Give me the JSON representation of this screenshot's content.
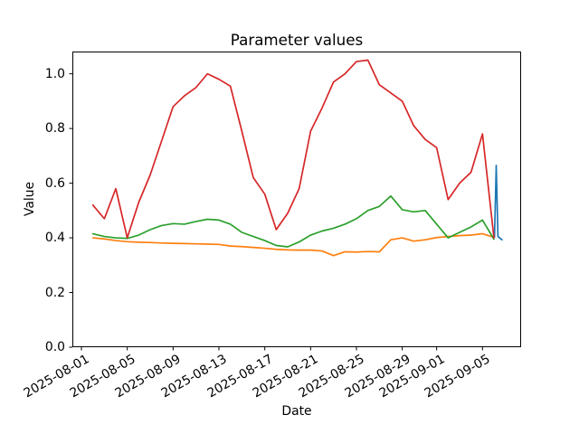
{
  "chart_data": {
    "type": "line",
    "title": "Parameter values",
    "xlabel": "Date",
    "ylabel": "Value",
    "grid": false,
    "legend": "none",
    "x_axis": {
      "tick_labels": [
        "2025-08-01",
        "2025-08-05",
        "2025-08-09",
        "2025-08-13",
        "2025-08-17",
        "2025-08-21",
        "2025-08-25",
        "2025-08-29",
        "2025-09-01",
        "2025-09-05"
      ],
      "tick_days": [
        1,
        5,
        9,
        13,
        17,
        21,
        25,
        29,
        32,
        36
      ],
      "lim_days": [
        0.21,
        39.37
      ],
      "day_unit": "day 1 = 2025-08-01"
    },
    "y_axis": {
      "tick_labels": [
        "0.0",
        "0.2",
        "0.4",
        "0.6",
        "0.8",
        "1.0"
      ],
      "tick_values": [
        0.0,
        0.2,
        0.4,
        0.6,
        0.8,
        1.0
      ],
      "lim": [
        0.0,
        1.0815
      ]
    },
    "dates": [
      "2025-08-02",
      "2025-08-03",
      "2025-08-04",
      "2025-08-05",
      "2025-08-06",
      "2025-08-07",
      "2025-08-08",
      "2025-08-09",
      "2025-08-10",
      "2025-08-11",
      "2025-08-12",
      "2025-08-13",
      "2025-08-14",
      "2025-08-15",
      "2025-08-16",
      "2025-08-17",
      "2025-08-18",
      "2025-08-19",
      "2025-08-20",
      "2025-08-21",
      "2025-08-22",
      "2025-08-23",
      "2025-08-24",
      "2025-08-25",
      "2025-08-26",
      "2025-08-27",
      "2025-08-28",
      "2025-08-29",
      "2025-08-30",
      "2025-08-31",
      "2025-09-01",
      "2025-09-02",
      "2025-09-03",
      "2025-09-04",
      "2025-09-05",
      "2025-09-06"
    ],
    "series": [
      {
        "name": "series-blue",
        "color": "#1f77b4",
        "x_days": [
          37.05,
          37.2,
          37.35,
          37.7
        ],
        "values": [
          0.402,
          0.665,
          0.405,
          0.393
        ]
      },
      {
        "name": "series-orange",
        "color": "#ff7f0e",
        "values": [
          0.4,
          0.396,
          0.39,
          0.386,
          0.384,
          0.383,
          0.381,
          0.38,
          0.379,
          0.378,
          0.377,
          0.376,
          0.37,
          0.368,
          0.365,
          0.362,
          0.358,
          0.356,
          0.355,
          0.355,
          0.352,
          0.335,
          0.349,
          0.348,
          0.35,
          0.349,
          0.393,
          0.4,
          0.388,
          0.393,
          0.401,
          0.405,
          0.408,
          0.41,
          0.415,
          0.402
        ]
      },
      {
        "name": "series-green",
        "color": "#2ca02c",
        "values": [
          0.415,
          0.405,
          0.4,
          0.398,
          0.41,
          0.43,
          0.445,
          0.452,
          0.45,
          0.46,
          0.468,
          0.465,
          0.45,
          0.42,
          0.405,
          0.39,
          0.372,
          0.367,
          0.385,
          0.41,
          0.425,
          0.435,
          0.45,
          0.47,
          0.5,
          0.515,
          0.553,
          0.503,
          0.495,
          0.5,
          0.45,
          0.4,
          0.42,
          0.44,
          0.465,
          0.395
        ]
      },
      {
        "name": "series-red",
        "color": "#d62728",
        "values": [
          0.52,
          0.47,
          0.58,
          0.4,
          0.53,
          0.63,
          0.755,
          0.88,
          0.92,
          0.95,
          1.0,
          0.98,
          0.955,
          0.79,
          0.62,
          0.56,
          0.43,
          0.49,
          0.58,
          0.79,
          0.875,
          0.97,
          1.0,
          1.045,
          1.05,
          0.96,
          0.93,
          0.9,
          0.81,
          0.76,
          0.73,
          0.54,
          0.6,
          0.64,
          0.78,
          0.4
        ]
      }
    ]
  }
}
